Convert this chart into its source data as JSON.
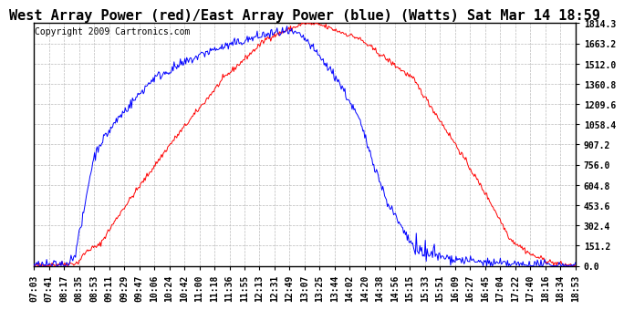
{
  "title": "West Array Power (red)/East Array Power (blue) (Watts) Sat Mar 14 18:59",
  "copyright": "Copyright 2009 Cartronics.com",
  "bg_color": "#FFFFFF",
  "plot_bg_color": "#FFFFFF",
  "grid_color": "#BBBBBB",
  "ymax": 1814.3,
  "ymin": 0.0,
  "yticks": [
    0.0,
    151.2,
    302.4,
    453.6,
    604.8,
    756.0,
    907.2,
    1058.4,
    1209.6,
    1360.8,
    1512.0,
    1663.2,
    1814.3
  ],
  "xtick_labels": [
    "07:03",
    "07:41",
    "08:17",
    "08:35",
    "08:53",
    "09:11",
    "09:29",
    "09:47",
    "10:06",
    "10:24",
    "10:42",
    "11:00",
    "11:18",
    "11:36",
    "11:55",
    "12:13",
    "12:31",
    "12:49",
    "13:07",
    "13:25",
    "13:44",
    "14:02",
    "14:20",
    "14:38",
    "14:56",
    "15:15",
    "15:33",
    "15:51",
    "16:09",
    "16:27",
    "16:45",
    "17:04",
    "17:22",
    "17:40",
    "18:16",
    "18:34",
    "18:53"
  ],
  "red_color": "#FF0000",
  "blue_color": "#0000FF",
  "title_fontsize": 11,
  "tick_fontsize": 7,
  "copyright_fontsize": 7,
  "red_keypoints_t": [
    0.0,
    0.08,
    0.095,
    0.105,
    0.12,
    0.16,
    0.25,
    0.35,
    0.43,
    0.5,
    0.53,
    0.6,
    0.7,
    0.78,
    0.84,
    0.88,
    0.92,
    0.96,
    1.0
  ],
  "red_keypoints_v": [
    0.0,
    20,
    100,
    130,
    150,
    400,
    900,
    1400,
    1700,
    1814,
    1800,
    1700,
    1400,
    900,
    500,
    200,
    80,
    20,
    0
  ],
  "blue_keypoints_t": [
    0.0,
    0.06,
    0.075,
    0.09,
    0.1,
    0.11,
    0.12,
    0.155,
    0.22,
    0.32,
    0.42,
    0.46,
    0.48,
    0.5,
    0.56,
    0.6,
    0.65,
    0.69,
    0.71,
    0.73,
    0.78,
    0.84,
    0.88,
    0.92,
    0.96,
    1.0
  ],
  "blue_keypoints_v": [
    0.0,
    10,
    80,
    350,
    600,
    800,
    900,
    1100,
    1400,
    1600,
    1720,
    1750,
    1740,
    1700,
    1400,
    1100,
    500,
    200,
    120,
    80,
    50,
    20,
    10,
    5,
    2,
    0
  ]
}
